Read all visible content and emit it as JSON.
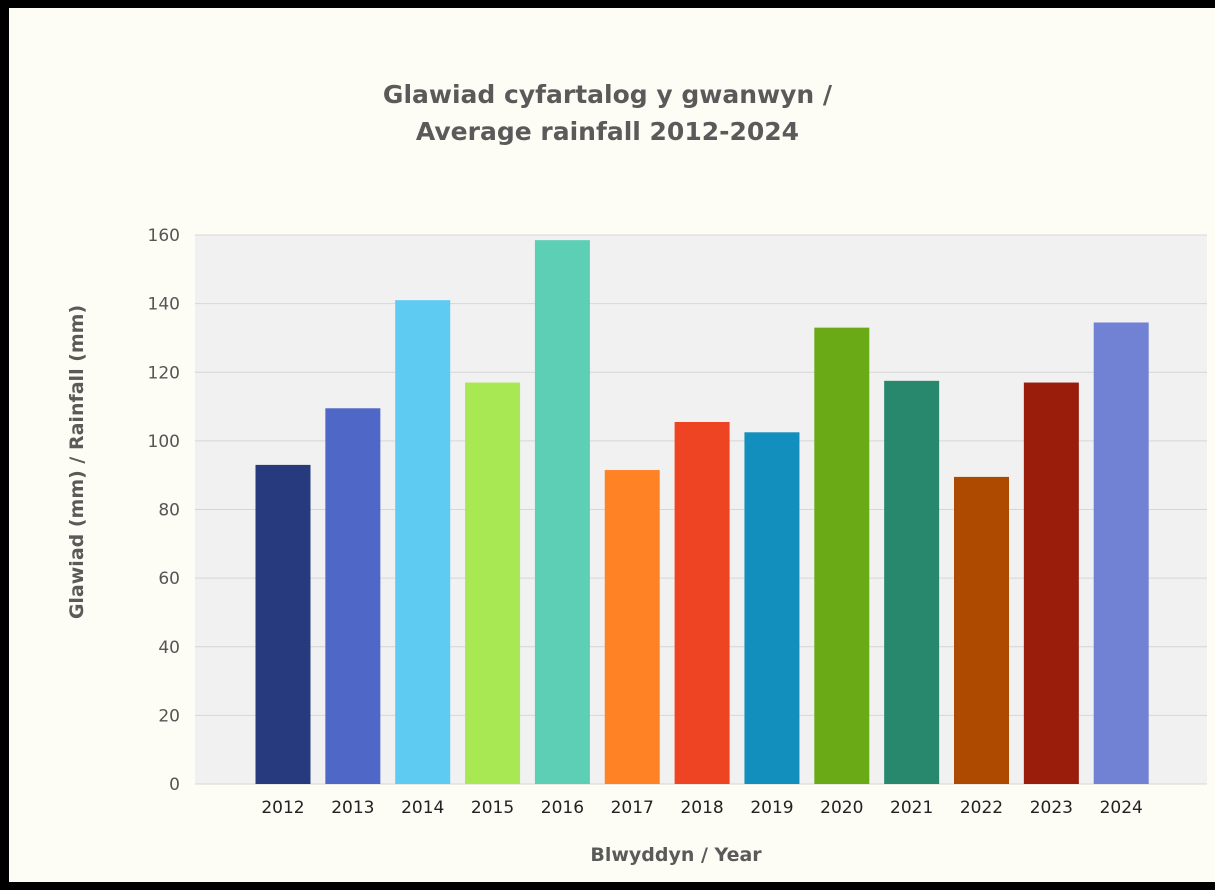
{
  "chart_data": {
    "type": "bar",
    "title": "Glawiad cyfartalog y gwanwyn /",
    "subtitle": "Average rainfall 2012-2024",
    "xlabel": "Blwyddyn / Year",
    "ylabel": "Glawiad (mm) /  Rainfall (mm)",
    "categories": [
      "2012",
      "2013",
      "2014",
      "2015",
      "2016",
      "2017",
      "2018",
      "2019",
      "2020",
      "2021",
      "2022",
      "2023",
      "2024"
    ],
    "values": [
      93,
      109.5,
      141,
      117,
      158.5,
      91.5,
      105.5,
      102.5,
      133,
      117.5,
      89.5,
      117,
      134.5
    ],
    "bar_colors": [
      "#263a7d",
      "#4f68c8",
      "#5ecbf2",
      "#a8e852",
      "#5ccfb4",
      "#ff8224",
      "#ee4424",
      "#128fbc",
      "#6aaa17",
      "#27886e",
      "#ae4a00",
      "#9a1d0b",
      "#7182d4"
    ],
    "ylim": [
      0,
      160
    ],
    "yticks": [
      0,
      20,
      40,
      60,
      80,
      100,
      120,
      140,
      160
    ],
    "grid": true,
    "legend": "none"
  }
}
